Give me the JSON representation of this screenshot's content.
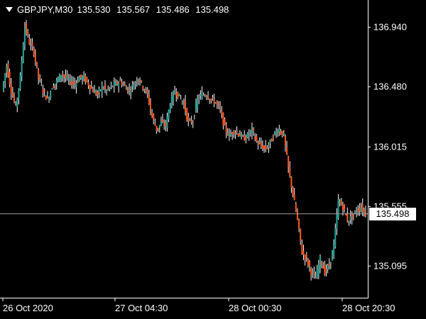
{
  "header": {
    "symbol_timeframe": "GBPJPY,M30",
    "open": "135.530",
    "high": "135.567",
    "low": "135.486",
    "close": "135.498"
  },
  "price_axis": {
    "labels": [
      "136.940",
      "136.480",
      "136.015",
      "135.555",
      "135.095"
    ],
    "values": [
      136.94,
      136.48,
      136.015,
      135.555,
      135.095
    ]
  },
  "current_price": {
    "label": "135.498",
    "value": 135.498
  },
  "time_axis": {
    "labels": [
      "26 Oct 2020",
      "27 Oct 04:30",
      "28 Oct 00:30",
      "28 Oct 20:30"
    ]
  },
  "colors": {
    "background": "#000000",
    "bull": "#26a69a",
    "bear": "#ff5722",
    "wick": "#ffffff",
    "axis": "#ffffff",
    "price_line": "#9e9e9e"
  },
  "chart_data": {
    "type": "candlestick",
    "title": "GBPJPY,M30",
    "ylim": [
      134.85,
      137.15
    ],
    "close_path": [
      136.45,
      136.65,
      136.45,
      136.32,
      136.55,
      136.95,
      136.82,
      136.75,
      136.55,
      136.45,
      136.38,
      136.48,
      136.52,
      136.58,
      136.55,
      136.52,
      136.5,
      136.55,
      136.55,
      136.5,
      136.45,
      136.42,
      136.48,
      136.45,
      136.48,
      136.5,
      136.52,
      136.48,
      136.45,
      136.5,
      136.55,
      136.48,
      136.42,
      136.25,
      136.15,
      136.2,
      136.18,
      136.35,
      136.45,
      136.4,
      136.35,
      136.2,
      136.22,
      136.38,
      136.42,
      136.42,
      136.38,
      136.36,
      136.3,
      136.16,
      136.1,
      136.14,
      136.12,
      136.08,
      136.1,
      136.15,
      136.05,
      136.02,
      136.0,
      136.05,
      136.12,
      136.15,
      136.1,
      135.85,
      135.65,
      135.45,
      135.2,
      135.15,
      135.05,
      135.0,
      135.15,
      135.05,
      135.1,
      135.25,
      135.6,
      135.55,
      135.45,
      135.48,
      135.52,
      135.55,
      135.5
    ]
  }
}
